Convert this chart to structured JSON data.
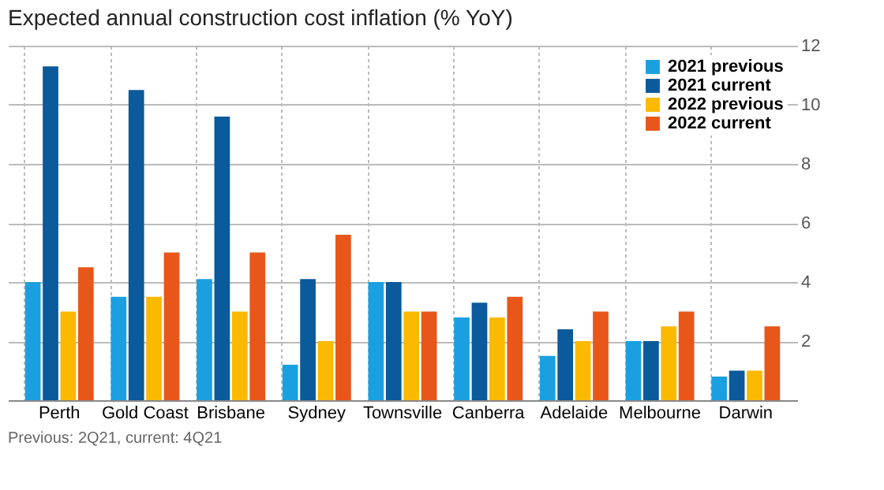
{
  "chart_data": {
    "type": "bar",
    "title": "Expected annual construction cost inflation (% YoY)",
    "categories": [
      "Perth",
      "Gold Coast",
      "Brisbane",
      "Sydney",
      "Townsville",
      "Canberra",
      "Adelaide",
      "Melbourne",
      "Darwin"
    ],
    "series": [
      {
        "name": "2021 previous",
        "color": "#1aa0e0",
        "values": [
          4.0,
          3.5,
          4.1,
          1.2,
          4.0,
          2.8,
          1.5,
          2.0,
          0.8
        ]
      },
      {
        "name": "2021 current",
        "color": "#0a5a9c",
        "values": [
          11.3,
          10.5,
          9.6,
          4.1,
          4.0,
          3.3,
          2.4,
          2.0,
          1.0
        ]
      },
      {
        "name": "2022 previous",
        "color": "#fbb900",
        "values": [
          3.0,
          3.5,
          3.0,
          2.0,
          3.0,
          2.8,
          2.0,
          2.5,
          1.0
        ]
      },
      {
        "name": "2022 current",
        "color": "#e8561a",
        "values": [
          4.5,
          5.0,
          5.0,
          5.6,
          3.0,
          3.5,
          3.0,
          3.0,
          2.5
        ]
      }
    ],
    "ylim": [
      0,
      12
    ],
    "yticks": [
      {
        "value": 0,
        "label": null
      },
      2,
      4,
      6,
      8,
      10,
      12
    ],
    "grid": true,
    "legend": "top right",
    "annotations": [
      "Previous: 2Q21, current: 4Q21"
    ]
  }
}
